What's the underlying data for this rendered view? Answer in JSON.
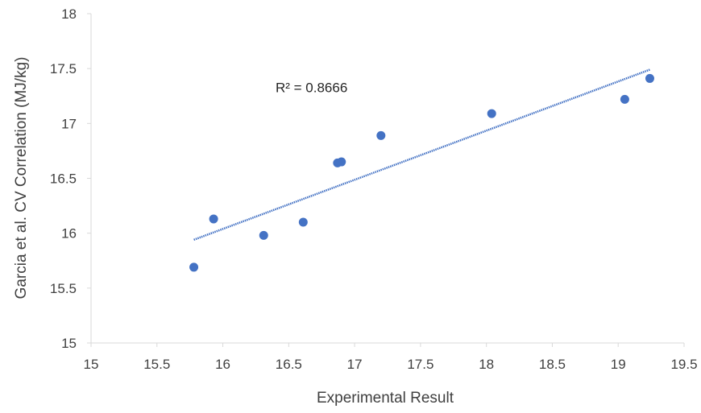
{
  "chart_data": {
    "type": "scatter",
    "xlabel": "Experimental Result",
    "ylabel": "Garcia et al. CV Correlation (MJ/kg)",
    "xlim": [
      15,
      19.5
    ],
    "ylim": [
      15,
      18
    ],
    "x_ticks": [
      "15",
      "15.5",
      "16",
      "16.5",
      "17",
      "17.5",
      "18",
      "18.5",
      "19",
      "19.5"
    ],
    "y_ticks": [
      "15",
      "15.5",
      "16",
      "16.5",
      "17",
      "17.5",
      "18"
    ],
    "grid": false,
    "legend": "none",
    "series": [
      {
        "color": "#4472C4",
        "points": [
          {
            "x": 15.78,
            "y": 15.69
          },
          {
            "x": 15.93,
            "y": 16.13
          },
          {
            "x": 16.31,
            "y": 15.98
          },
          {
            "x": 16.61,
            "y": 16.1
          },
          {
            "x": 16.87,
            "y": 16.64
          },
          {
            "x": 16.9,
            "y": 16.65
          },
          {
            "x": 17.2,
            "y": 16.89
          },
          {
            "x": 18.04,
            "y": 17.09
          },
          {
            "x": 19.05,
            "y": 17.22
          },
          {
            "x": 19.24,
            "y": 17.41
          }
        ]
      }
    ],
    "trendline": {
      "type": "linear",
      "color": "#4472C4",
      "x_start": 15.78,
      "y_start": 15.94,
      "x_end": 19.24,
      "y_end": 17.49
    },
    "annotation": {
      "text": "R² = 0.8666",
      "x": 16.4,
      "y": 17.33
    }
  }
}
